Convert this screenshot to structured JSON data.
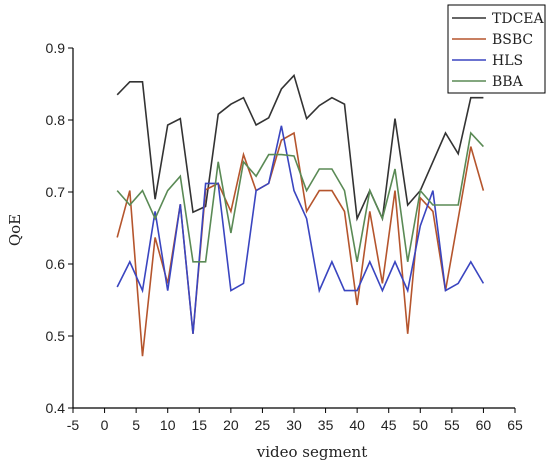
{
  "chart_data": {
    "type": "line",
    "title": "",
    "xlabel": "video segment",
    "ylabel": "QoE",
    "xlim": [
      -5,
      65
    ],
    "ylim": [
      0.4,
      0.9
    ],
    "xticks": [
      -5,
      0,
      5,
      10,
      15,
      20,
      25,
      30,
      35,
      40,
      45,
      50,
      55,
      60,
      65
    ],
    "yticks": [
      0.4,
      0.5,
      0.6,
      0.7,
      0.8,
      0.9
    ],
    "xtick_labels": [
      "-5",
      "0",
      "5",
      "10",
      "15",
      "20",
      "25",
      "30",
      "35",
      "40",
      "45",
      "50",
      "55",
      "60",
      "65"
    ],
    "ytick_labels": [
      "0.4",
      "0.5",
      "0.6",
      "0.7",
      "0.8",
      "0.9"
    ],
    "grid": false,
    "legend_position": "top-right",
    "x": [
      2,
      4,
      6,
      8,
      10,
      12,
      14,
      16,
      18,
      20,
      22,
      24,
      26,
      28,
      30,
      32,
      34,
      36,
      38,
      40,
      42,
      44,
      46,
      48,
      50,
      52,
      54,
      56,
      58,
      60
    ],
    "series": [
      {
        "name": "TDCEA",
        "color": "#333333",
        "values": [
          0.835,
          0.853,
          0.853,
          0.69,
          0.793,
          0.802,
          0.672,
          0.68,
          0.808,
          0.822,
          0.831,
          0.793,
          0.803,
          0.843,
          0.862,
          0.802,
          0.82,
          0.831,
          0.822,
          0.663,
          0.702,
          0.663,
          0.802,
          0.682,
          0.702,
          0.742,
          0.782,
          0.753,
          0.831,
          0.831
        ]
      },
      {
        "name": "BSBC",
        "color": "#b5552d",
        "values": [
          0.637,
          0.702,
          0.472,
          0.637,
          0.573,
          0.683,
          0.503,
          0.703,
          0.712,
          0.673,
          0.752,
          0.702,
          0.712,
          0.772,
          0.782,
          0.673,
          0.702,
          0.702,
          0.673,
          0.543,
          0.673,
          0.573,
          0.702,
          0.503,
          0.692,
          0.673,
          0.563,
          0.663,
          0.763,
          0.702
        ]
      },
      {
        "name": "HLS",
        "color": "#3a45c0",
        "values": [
          0.568,
          0.603,
          0.563,
          0.673,
          0.563,
          0.683,
          0.503,
          0.712,
          0.712,
          0.563,
          0.573,
          0.702,
          0.712,
          0.792,
          0.702,
          0.663,
          0.563,
          0.603,
          0.563,
          0.563,
          0.603,
          0.563,
          0.603,
          0.563,
          0.653,
          0.702,
          0.563,
          0.573,
          0.603,
          0.573
        ]
      },
      {
        "name": "BBA",
        "color": "#5a8a55",
        "values": [
          0.702,
          0.682,
          0.702,
          0.663,
          0.702,
          0.722,
          0.603,
          0.603,
          0.742,
          0.643,
          0.742,
          0.722,
          0.752,
          0.752,
          0.75,
          0.702,
          0.732,
          0.732,
          0.702,
          0.603,
          0.702,
          0.663,
          0.732,
          0.603,
          0.702,
          0.682,
          0.682,
          0.682,
          0.782,
          0.763
        ]
      }
    ]
  }
}
